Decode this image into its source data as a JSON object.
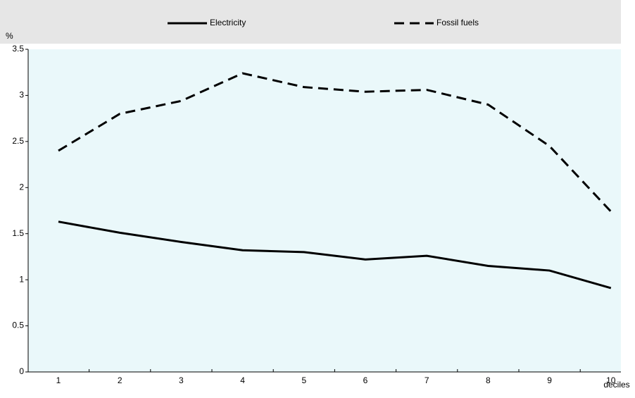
{
  "chart_data": {
    "type": "line",
    "y_label": "%",
    "x_label": "deciles",
    "categories": [
      "1",
      "2",
      "3",
      "4",
      "5",
      "6",
      "7",
      "8",
      "9",
      "10"
    ],
    "series": [
      {
        "name": "Electricity",
        "color": "#000000",
        "dash": "solid",
        "values": [
          1.63,
          1.51,
          1.41,
          1.32,
          1.3,
          1.22,
          1.26,
          1.15,
          1.1,
          0.91
        ]
      },
      {
        "name": "Fossil fuels",
        "color": "#000000",
        "dash": "dashed",
        "values": [
          2.4,
          2.8,
          2.94,
          3.24,
          3.09,
          3.04,
          3.06,
          2.9,
          2.45,
          1.74
        ]
      }
    ],
    "ylim": [
      0,
      3.5
    ],
    "yticks": [
      0,
      0.5,
      1,
      1.5,
      2,
      2.5,
      3,
      3.5
    ],
    "legend": "top"
  }
}
